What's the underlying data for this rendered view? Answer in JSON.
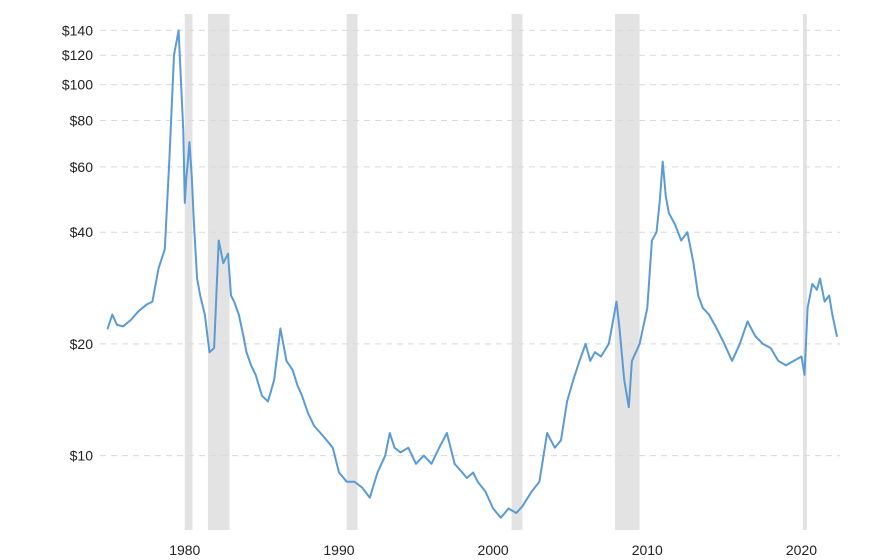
{
  "chart_data": {
    "type": "line",
    "title": "",
    "xlabel": "",
    "ylabel": "",
    "y_scale": "log",
    "ylim": [
      6.3,
      155
    ],
    "xlim": [
      1974.5,
      2022.5
    ],
    "grid": true,
    "colors": {
      "line": "#5b9bd5",
      "recession": "#e3e3e3",
      "grid": "#d9d9d9"
    },
    "y_ticks": [
      {
        "value": 10,
        "label": "$10"
      },
      {
        "value": 20,
        "label": "$20"
      },
      {
        "value": 40,
        "label": "$40"
      },
      {
        "value": 60,
        "label": "$60"
      },
      {
        "value": 80,
        "label": "$80"
      },
      {
        "value": 100,
        "label": "$100"
      },
      {
        "value": 120,
        "label": "$120"
      },
      {
        "value": 140,
        "label": "$140"
      }
    ],
    "x_ticks": [
      {
        "value": 1980,
        "label": "1980"
      },
      {
        "value": 1990,
        "label": "1990"
      },
      {
        "value": 2000,
        "label": "2000"
      },
      {
        "value": 2010,
        "label": "2010"
      },
      {
        "value": 2020,
        "label": "2020"
      }
    ],
    "shaded_periods": [
      [
        1980.0,
        1980.5
      ],
      [
        1981.5,
        1982.9
      ],
      [
        1990.5,
        1991.2
      ],
      [
        2001.2,
        2001.9
      ],
      [
        2007.9,
        2009.5
      ],
      [
        2020.1,
        2020.35
      ]
    ],
    "series": [
      {
        "x": [
          1975.0,
          1975.3,
          1975.6,
          1976.0,
          1976.5,
          1977.0,
          1977.5,
          1977.9,
          1978.3,
          1978.7,
          1979.0,
          1979.3,
          1979.6,
          1979.9,
          1980.0,
          1980.1,
          1980.2,
          1980.3,
          1980.45,
          1980.6,
          1980.8,
          1981.0,
          1981.3,
          1981.6,
          1981.9,
          1982.2,
          1982.5,
          1982.8,
          1983.0,
          1983.2,
          1983.5,
          1983.8,
          1984.0,
          1984.3,
          1984.6,
          1985.0,
          1985.4,
          1985.8,
          1986.2,
          1986.6,
          1987.0,
          1987.3,
          1987.6,
          1988.0,
          1988.4,
          1988.8,
          1989.2,
          1989.6,
          1990.0,
          1990.5,
          1991.0,
          1991.5,
          1992.0,
          1992.5,
          1993.0,
          1993.3,
          1993.6,
          1994.0,
          1994.5,
          1995.0,
          1995.5,
          1996.0,
          1996.5,
          1997.0,
          1997.5,
          1998.0,
          1998.3,
          1998.7,
          1999.0,
          1999.5,
          2000.0,
          2000.5,
          2001.0,
          2001.5,
          2001.9,
          2002.5,
          2003.0,
          2003.5,
          2004.0,
          2004.4,
          2004.8,
          2005.2,
          2005.6,
          2006.0,
          2006.3,
          2006.6,
          2007.0,
          2007.5,
          2008.0,
          2008.2,
          2008.5,
          2008.8,
          2009.0,
          2009.5,
          2010.0,
          2010.3,
          2010.6,
          2010.8,
          2011.0,
          2011.2,
          2011.4,
          2011.8,
          2012.2,
          2012.6,
          2013.0,
          2013.3,
          2013.6,
          2014.0,
          2014.5,
          2015.0,
          2015.5,
          2016.0,
          2016.5,
          2017.0,
          2017.5,
          2018.0,
          2018.5,
          2019.0,
          2019.5,
          2020.0,
          2020.2,
          2020.4,
          2020.7,
          2021.0,
          2021.2,
          2021.5,
          2021.8,
          2022.0,
          2022.3
        ],
        "y": [
          22.0,
          24.0,
          22.5,
          22.3,
          23.2,
          24.5,
          25.5,
          26.0,
          32.0,
          36.0,
          63.0,
          120.0,
          140.0,
          75.0,
          48.0,
          56.0,
          62.0,
          70.0,
          57.0,
          42.0,
          30.0,
          27.0,
          24.0,
          19.0,
          19.5,
          38.0,
          33.0,
          35.0,
          27.0,
          26.0,
          24.0,
          21.0,
          19.0,
          17.5,
          16.5,
          14.5,
          14.0,
          16.0,
          22.0,
          18.0,
          17.0,
          15.5,
          14.5,
          13.0,
          12.0,
          11.5,
          11.0,
          10.5,
          9.0,
          8.5,
          8.5,
          8.2,
          7.7,
          9.0,
          10.0,
          11.5,
          10.5,
          10.2,
          10.5,
          9.5,
          10.0,
          9.5,
          10.5,
          11.5,
          9.5,
          9.0,
          8.7,
          9.0,
          8.5,
          8.0,
          7.2,
          6.8,
          7.2,
          7.0,
          7.3,
          8.0,
          8.5,
          11.5,
          10.5,
          11.0,
          14.0,
          16.0,
          18.0,
          20.0,
          18.0,
          19.0,
          18.5,
          20.0,
          26.0,
          22.0,
          16.0,
          13.5,
          18.0,
          20.0,
          25.0,
          38.0,
          40.0,
          48.0,
          62.0,
          50.0,
          45.0,
          42.0,
          38.0,
          40.0,
          33.0,
          27.0,
          25.0,
          24.0,
          22.0,
          20.0,
          18.0,
          20.0,
          23.0,
          21.0,
          20.0,
          19.5,
          18.0,
          17.5,
          18.0,
          18.5,
          16.5,
          25.0,
          29.0,
          28.0,
          30.0,
          26.0,
          27.0,
          24.0,
          21.0
        ]
      }
    ]
  }
}
